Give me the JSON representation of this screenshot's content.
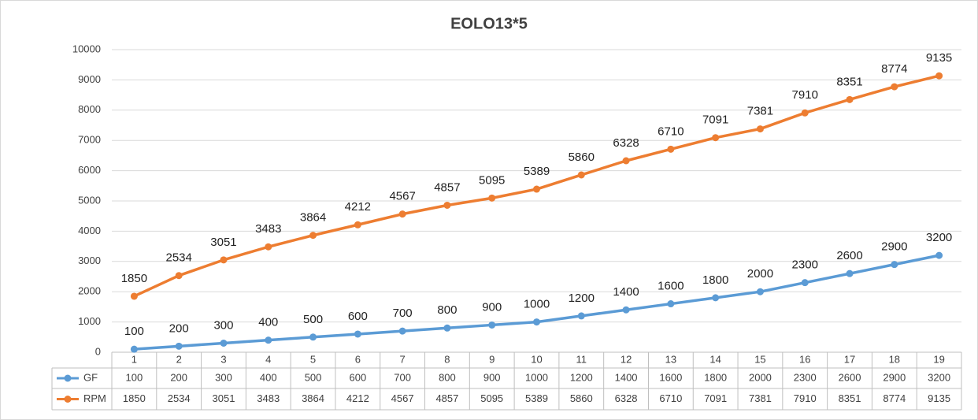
{
  "chart_data": {
    "type": "line",
    "title": "EOLO13*5",
    "categories": [
      1,
      2,
      3,
      4,
      5,
      6,
      7,
      8,
      9,
      10,
      11,
      12,
      13,
      14,
      15,
      16,
      17,
      18,
      19
    ],
    "series": [
      {
        "name": "GF",
        "color": "#5b9bd5",
        "values": [
          100,
          200,
          300,
          400,
          500,
          600,
          700,
          800,
          900,
          1000,
          1200,
          1400,
          1600,
          1800,
          2000,
          2300,
          2600,
          2900,
          3200
        ]
      },
      {
        "name": "RPM",
        "color": "#ed7d31",
        "values": [
          1850,
          2534,
          3051,
          3483,
          3864,
          4212,
          4567,
          4857,
          5095,
          5389,
          5860,
          6328,
          6710,
          7091,
          7381,
          7910,
          8351,
          8774,
          9135
        ]
      }
    ],
    "ylim": [
      0,
      10000
    ],
    "yticks": [
      0,
      1000,
      2000,
      3000,
      4000,
      5000,
      6000,
      7000,
      8000,
      9000,
      10000
    ],
    "grid": true
  }
}
